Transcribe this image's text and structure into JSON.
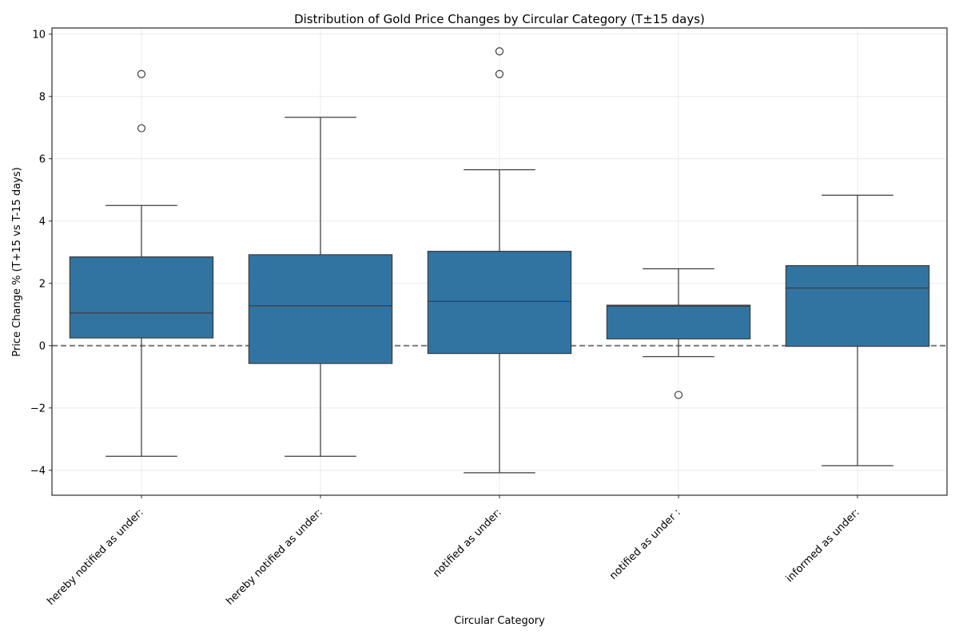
{
  "chart_data": {
    "type": "box",
    "title": "Distribution of Gold Price Changes by Circular Category (T±15 days)",
    "xlabel": "Circular Category",
    "ylabel": "Price Change % (T+15 vs T-15 days)",
    "ylim": [
      -4.8,
      10.2
    ],
    "yticks": [
      -4,
      -2,
      0,
      2,
      4,
      6,
      8,
      10
    ],
    "ytick_labels": [
      "−4",
      "−2",
      "0",
      "2",
      "4",
      "6",
      "8",
      "10"
    ],
    "grid": true,
    "reference_line": 0,
    "box_color": "#3274a1",
    "line_color": "#3d3d3d",
    "categories": [
      "hereby  notified as under:",
      "hereby notified as under:",
      "notified as under:",
      "notified as under :",
      "informed as under:"
    ],
    "boxes": [
      {
        "whisker_low": -3.55,
        "q1": 0.25,
        "median": 1.05,
        "q3": 2.85,
        "whisker_high": 4.5,
        "outliers": [
          6.98,
          8.72
        ]
      },
      {
        "whisker_low": -3.55,
        "q1": -0.57,
        "median": 1.28,
        "q3": 2.92,
        "whisker_high": 7.33,
        "outliers": []
      },
      {
        "whisker_low": -4.08,
        "q1": -0.25,
        "median": 1.42,
        "q3": 3.03,
        "whisker_high": 5.65,
        "outliers": [
          8.72,
          9.45
        ]
      },
      {
        "whisker_low": -0.35,
        "q1": 0.22,
        "median": 1.27,
        "q3": 1.3,
        "whisker_high": 2.47,
        "outliers": [
          -1.58
        ]
      },
      {
        "whisker_low": -3.85,
        "q1": -0.02,
        "median": 1.85,
        "q3": 2.57,
        "whisker_high": 4.83,
        "outliers": []
      }
    ]
  }
}
